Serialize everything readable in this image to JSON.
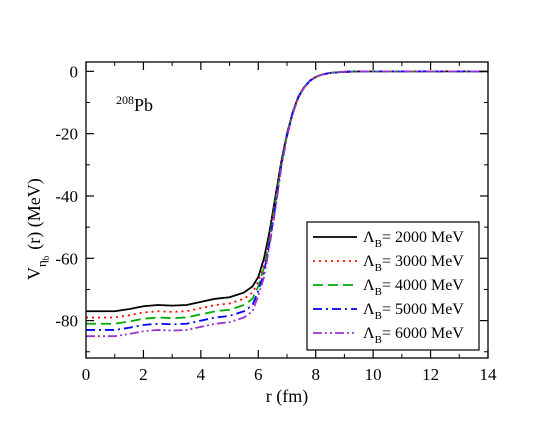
{
  "chart_data": {
    "type": "line",
    "title": "",
    "annotation": {
      "sup": "208",
      "text": "Pb"
    },
    "xlabel": "r (fm)",
    "ylabel": {
      "main": "V",
      "sub": "η",
      "subsub": "b",
      "rest": "(r)  (MeV)"
    },
    "xlim": [
      0,
      14
    ],
    "ylim": [
      -92,
      3
    ],
    "xticks": [
      0,
      2,
      4,
      6,
      8,
      10,
      12,
      14
    ],
    "yticks": [
      0,
      -20,
      -40,
      -60,
      -80
    ],
    "grid": false,
    "legend_position": "lower-right",
    "x": [
      0,
      0.5,
      1,
      1.5,
      2,
      2.5,
      3,
      3.5,
      4,
      4.5,
      5,
      5.5,
      5.8,
      6,
      6.2,
      6.4,
      6.6,
      6.8,
      7,
      7.2,
      7.4,
      7.6,
      7.8,
      8,
      8.2,
      8.5,
      9,
      9.5,
      10,
      11,
      12,
      13,
      14
    ],
    "series": [
      {
        "name": "2000 MeV",
        "color": "#000000",
        "dash": "solid",
        "values": [
          -77.0,
          -77.0,
          -77.0,
          -76.3,
          -75.4,
          -75.0,
          -75.2,
          -75.0,
          -74.0,
          -73.0,
          -72.5,
          -71.0,
          -69.0,
          -66.0,
          -60.0,
          -51.0,
          -40.0,
          -29.0,
          -20.0,
          -13.0,
          -8.0,
          -5.0,
          -3.0,
          -1.8,
          -1.1,
          -0.5,
          -0.15,
          -0.05,
          -0.01,
          0,
          0,
          0,
          0
        ]
      },
      {
        "name": "3000 MeV",
        "color": "#ff0000",
        "dash": "dotted",
        "values": [
          -79.0,
          -79.0,
          -79.0,
          -78.3,
          -77.4,
          -77.0,
          -77.2,
          -77.0,
          -76.0,
          -75.0,
          -74.5,
          -73.0,
          -71.0,
          -67.5,
          -61.5,
          -52.5,
          -41.0,
          -29.5,
          -20.0,
          -13.0,
          -8.0,
          -5.0,
          -3.0,
          -1.8,
          -1.1,
          -0.5,
          -0.15,
          -0.05,
          -0.01,
          0,
          0,
          0,
          0
        ]
      },
      {
        "name": "4000 MeV",
        "color": "#00aa00",
        "dash": "dashed",
        "values": [
          -81.0,
          -81.0,
          -81.0,
          -80.3,
          -79.4,
          -79.0,
          -79.2,
          -79.0,
          -78.0,
          -77.0,
          -76.5,
          -75.0,
          -73.0,
          -69.0,
          -63.0,
          -53.5,
          -42.0,
          -30.0,
          -20.5,
          -13.2,
          -8.2,
          -5.0,
          -3.0,
          -1.8,
          -1.1,
          -0.5,
          -0.15,
          -0.05,
          -0.01,
          0,
          0,
          0,
          0
        ]
      },
      {
        "name": "5000 MeV",
        "color": "#0000ff",
        "dash": "dashdot",
        "values": [
          -83.0,
          -83.0,
          -83.0,
          -82.3,
          -81.4,
          -81.0,
          -81.2,
          -81.0,
          -80.0,
          -79.0,
          -78.5,
          -77.0,
          -75.0,
          -70.5,
          -64.5,
          -54.5,
          -43.0,
          -30.5,
          -20.8,
          -13.4,
          -8.3,
          -5.1,
          -3.0,
          -1.8,
          -1.1,
          -0.5,
          -0.15,
          -0.05,
          -0.01,
          0,
          0,
          0,
          0
        ]
      },
      {
        "name": "6000 MeV",
        "color": "#9933cc",
        "dash": "dashdotdot",
        "values": [
          -85.0,
          -85.0,
          -85.0,
          -84.3,
          -83.4,
          -83.0,
          -83.2,
          -83.0,
          -82.0,
          -81.0,
          -80.5,
          -79.0,
          -77.0,
          -72.0,
          -66.0,
          -55.5,
          -44.0,
          -31.0,
          -21.0,
          -13.6,
          -8.4,
          -5.2,
          -3.1,
          -1.8,
          -1.1,
          -0.5,
          -0.15,
          -0.05,
          -0.01,
          0,
          0,
          0,
          0
        ]
      }
    ],
    "legend_prefix": {
      "main": "Λ",
      "sub": "B",
      "eq": "= "
    }
  }
}
